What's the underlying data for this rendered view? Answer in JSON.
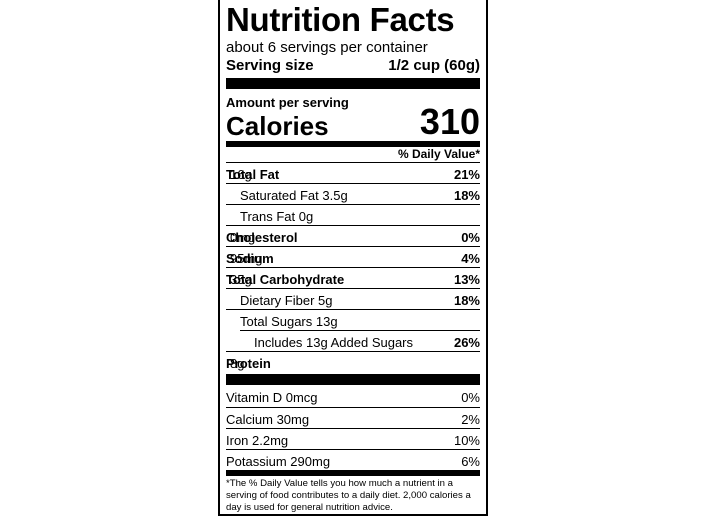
{
  "title": "Nutrition Facts",
  "servings": "about 6 servings per container",
  "serving_size": {
    "label": "Serving size",
    "value": "1/2 cup (60g)"
  },
  "amount_per_serving": "Amount per serving",
  "calories": {
    "label": "Calories",
    "value": 310
  },
  "daily_value_header": "% Daily Value*",
  "nutrients": [
    {
      "name": "Total Fat",
      "amount": "16g",
      "dv": "21%"
    },
    {
      "name": "Saturated Fat 3.5g",
      "dv": "18%"
    },
    {
      "name": "Trans Fat 0g"
    },
    {
      "name": "Cholesterol",
      "amount": "0mg",
      "dv": "0%"
    },
    {
      "name": "Sodium",
      "amount": "95mg",
      "dv": "4%"
    },
    {
      "name": "Total Carbohydrate",
      "amount": "35g",
      "dv": "13%"
    },
    {
      "name": "Dietary Fiber 5g",
      "dv": "18%"
    },
    {
      "name": "Total Sugars 13g"
    },
    {
      "name": "Includes 13g Added Sugars",
      "dv": "26%"
    },
    {
      "name": "Protein",
      "amount": "8g"
    }
  ],
  "vitamins": [
    {
      "name": "Vitamin D 0mcg",
      "dv": "0%"
    },
    {
      "name": "Calcium 30mg",
      "dv": "2%"
    },
    {
      "name": "Iron 2.2mg",
      "dv": "10%"
    },
    {
      "name": "Potassium 290mg",
      "dv": "6%"
    }
  ],
  "footnote": "*The % Daily Value tells you how much a nutrient in a serving of food contributes to a daily diet. 2,000 calories a day is used for general nutrition advice."
}
